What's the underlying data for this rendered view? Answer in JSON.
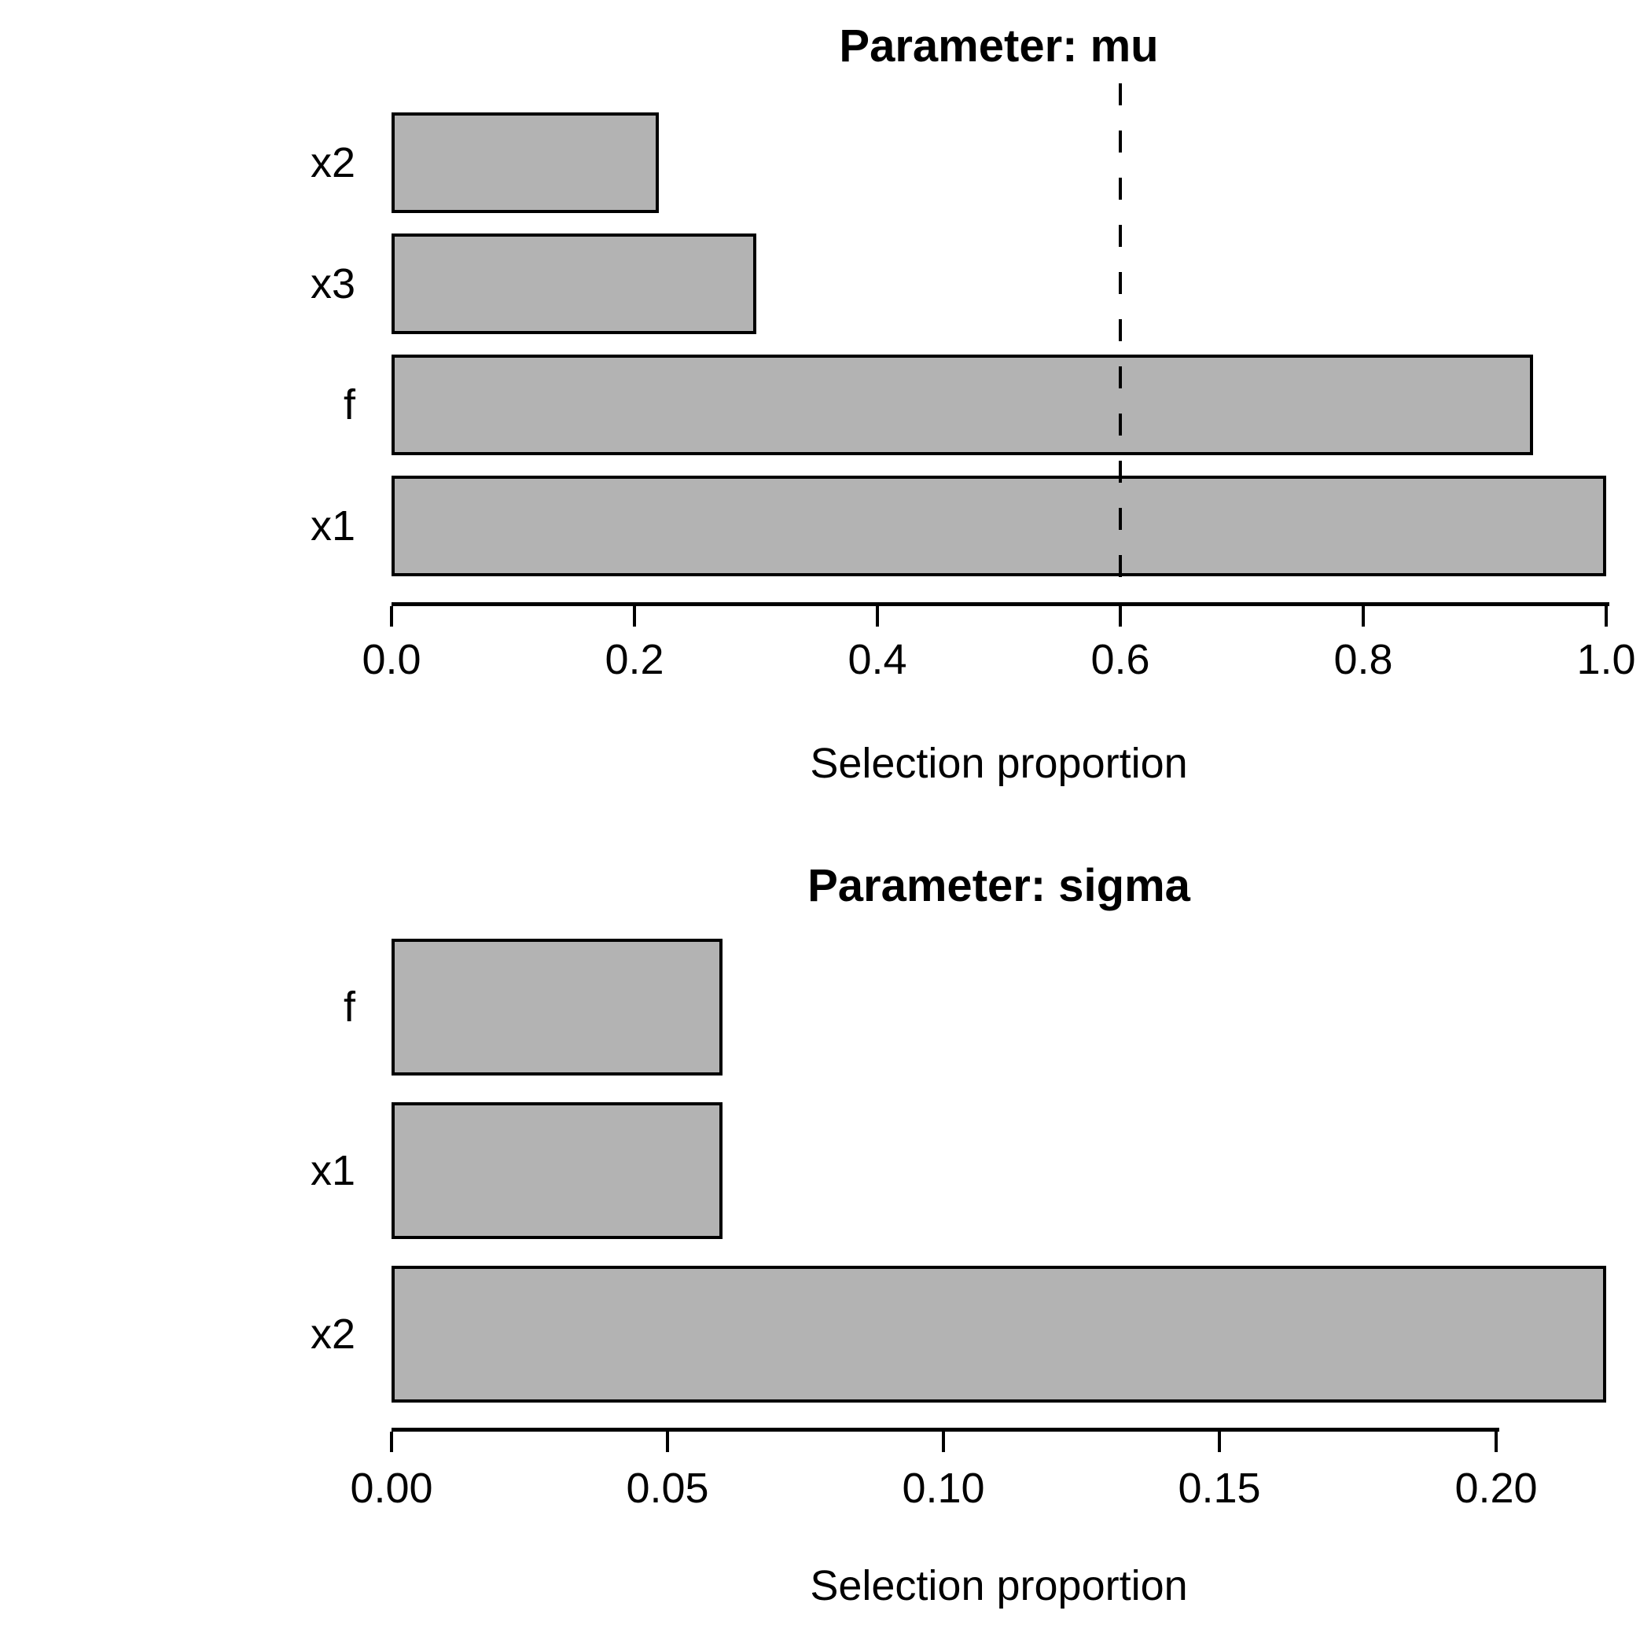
{
  "figure": {
    "background": "#ffffff",
    "text_color": "#000000"
  },
  "chart_data": [
    {
      "type": "bar",
      "orientation": "horizontal",
      "title": "Parameter: mu",
      "categories": [
        "x2",
        "x3",
        "f",
        "x1"
      ],
      "values": [
        0.22,
        0.3,
        0.94,
        1.0
      ],
      "xlabel": "Selection proportion",
      "xlim": [
        0,
        1.0
      ],
      "xticks": [
        0,
        0.2,
        0.4,
        0.6,
        0.8,
        1.0
      ],
      "xtick_labels": [
        "0.0",
        "0.2",
        "0.4",
        "0.6",
        "0.8",
        "1.0"
      ],
      "threshold_line": {
        "value": 0.6,
        "style": "dashed",
        "color": "#000000"
      },
      "bar_fill": "#b3b3b3",
      "bar_border": "#000000",
      "grid": false,
      "legend": null
    },
    {
      "type": "bar",
      "orientation": "horizontal",
      "title": "Parameter: sigma",
      "categories": [
        "f",
        "x1",
        "x2"
      ],
      "values": [
        0.06,
        0.06,
        0.22
      ],
      "xlabel": "Selection proportion",
      "xlim": [
        0,
        0.22
      ],
      "xticks": [
        0,
        0.05,
        0.1,
        0.15,
        0.2
      ],
      "xtick_labels": [
        "0.00",
        "0.05",
        "0.10",
        "0.15",
        "0.20"
      ],
      "threshold_line": null,
      "bar_fill": "#b3b3b3",
      "bar_border": "#000000",
      "grid": false,
      "legend": null
    }
  ]
}
